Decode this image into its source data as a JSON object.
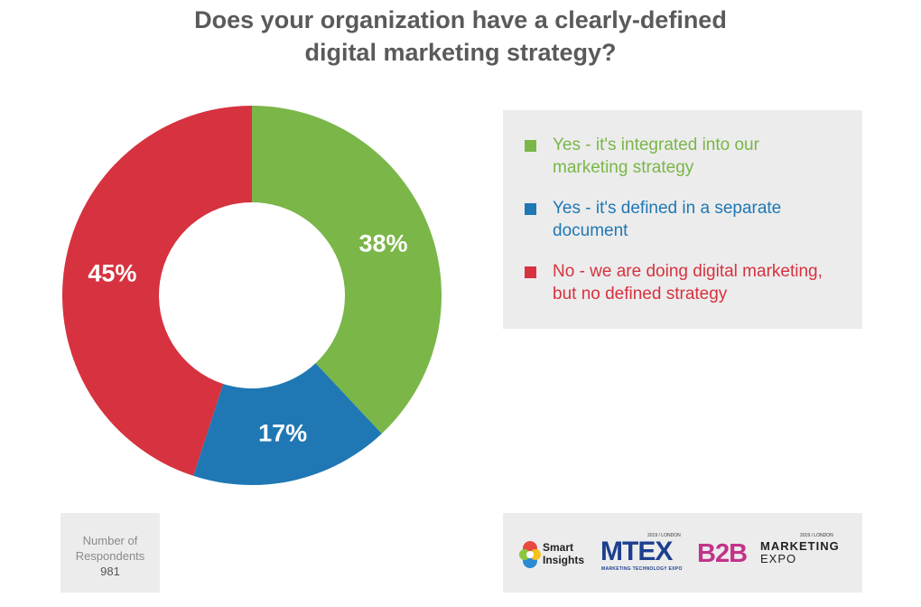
{
  "chart_data": {
    "type": "pie",
    "title": "Does your organization have a clearly-defined digital marketing strategy?",
    "title_lines": [
      "Does your organization have a clearly-defined",
      "digital marketing strategy?"
    ],
    "categories": [
      "Yes - it's integrated into our marketing strategy",
      "Yes - it's defined in a separate document",
      "No - we are doing digital marketing, but no defined strategy"
    ],
    "values": [
      38,
      17,
      45
    ],
    "value_labels": [
      "38%",
      "17%",
      "45%"
    ],
    "colors": [
      "#7ab648",
      "#1f78b4",
      "#d6323f"
    ],
    "donut": true,
    "legend_placement": "right",
    "legend": [
      {
        "lines": [
          "Yes - it's integrated into our",
          "marketing strategy"
        ],
        "color": "#7ab648"
      },
      {
        "lines": [
          "Yes - it's defined in a separate",
          "document"
        ],
        "color": "#1f78b4"
      },
      {
        "lines": [
          "No - we are doing digital marketing,",
          "but no defined strategy"
        ],
        "color": "#d6323f"
      }
    ]
  },
  "respondents": {
    "label_line1": "Number of",
    "label_line2": "Respondents",
    "count": "981"
  },
  "logos": {
    "smart_insights": {
      "line1": "Smart",
      "line2": "Insights",
      "icon": "smart-insights-logo-icon"
    },
    "mtex": {
      "small": "2019 / LONDON",
      "main": "MTEX",
      "sub": "MARKETING TECHNOLOGY EXPO"
    },
    "b2b": {
      "small": "2019 / LONDON",
      "main": "B2B",
      "word1": "MARKETING",
      "word2": "EXPO"
    }
  }
}
